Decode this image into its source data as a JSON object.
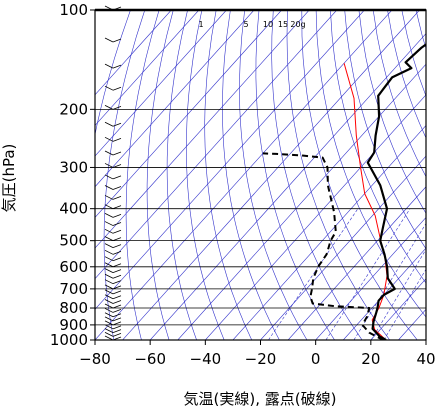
{
  "chart_data": {
    "type": "line",
    "title": "",
    "xlabel": "気温(実線), 露点(破線)",
    "ylabel": "気圧(hPa)",
    "xlim": [
      -80,
      40
    ],
    "ylim": [
      1000,
      100
    ],
    "yscale": "log",
    "xticks": [
      -80,
      -60,
      -40,
      -20,
      0,
      20,
      40
    ],
    "yticks": [
      100,
      200,
      300,
      400,
      500,
      600,
      700,
      800,
      900,
      1000
    ],
    "tick_labels_x": [
      "−80",
      "−60",
      "−40",
      "−20",
      "0",
      "20",
      "40"
    ],
    "tick_labels_y": [
      "100",
      "200",
      "300",
      "400",
      "500",
      "600",
      "700",
      "800",
      "900",
      "1000"
    ],
    "mixing_ratio_labels": [
      "1",
      "5",
      "10",
      "15",
      "20g"
    ],
    "colors": {
      "temperature": "#000000",
      "dewpoint": "#000000",
      "parcel": "#ff0000",
      "dry_adiabats": "#3333cc",
      "isotherms": "#3333cc",
      "mixing_ratio": "#3333cc",
      "grid": "#000000"
    },
    "series": [
      {
        "style": "solid",
        "points": [
          {
            "x": 25.5,
            "y": 1000
          },
          {
            "x": 22,
            "y": 975
          },
          {
            "x": 17,
            "y": 925
          },
          {
            "x": 15,
            "y": 880
          },
          {
            "x": 13,
            "y": 825
          },
          {
            "x": 12,
            "y": 800
          },
          {
            "x": 10,
            "y": 760
          },
          {
            "x": 10,
            "y": 730
          },
          {
            "x": 12,
            "y": 700
          },
          {
            "x": 6,
            "y": 650
          },
          {
            "x": 2,
            "y": 600
          },
          {
            "x": -3,
            "y": 550
          },
          {
            "x": -9,
            "y": 500
          },
          {
            "x": -12,
            "y": 460
          },
          {
            "x": -17,
            "y": 400
          },
          {
            "x": -27,
            "y": 340
          },
          {
            "x": -39,
            "y": 290
          },
          {
            "x": -40,
            "y": 270
          },
          {
            "x": -45,
            "y": 240
          },
          {
            "x": -50,
            "y": 210
          },
          {
            "x": -57,
            "y": 182
          },
          {
            "x": -58,
            "y": 160
          },
          {
            "x": -54,
            "y": 150
          },
          {
            "x": -58,
            "y": 144
          },
          {
            "x": -57,
            "y": 130
          },
          {
            "x": -56,
            "y": 125
          },
          {
            "x": -57,
            "y": 120
          },
          {
            "x": -61,
            "y": 110
          },
          {
            "x": -66,
            "y": 100
          }
        ]
      },
      {
        "style": "dashed",
        "points": [
          {
            "x": 24.5,
            "y": 1000
          },
          {
            "x": 17,
            "y": 950
          },
          {
            "x": 12,
            "y": 900
          },
          {
            "x": 11,
            "y": 850
          },
          {
            "x": 9,
            "y": 800
          },
          {
            "x": -4,
            "y": 790
          },
          {
            "x": -13,
            "y": 775
          },
          {
            "x": -16,
            "y": 740
          },
          {
            "x": -18,
            "y": 700
          },
          {
            "x": -21,
            "y": 650
          },
          {
            "x": -23,
            "y": 600
          },
          {
            "x": -24,
            "y": 550
          },
          {
            "x": -27,
            "y": 500
          },
          {
            "x": -28,
            "y": 470
          },
          {
            "x": -35,
            "y": 410
          },
          {
            "x": -46,
            "y": 340
          },
          {
            "x": -52,
            "y": 300
          },
          {
            "x": -57,
            "y": 280
          },
          {
            "x": -65,
            "y": 276
          },
          {
            "x": -75,
            "y": 273
          },
          {
            "x": -80,
            "y": 272
          }
        ]
      },
      {
        "style": "parcel",
        "points": [
          {
            "x": 25.5,
            "y": 1000
          },
          {
            "x": 18,
            "y": 930
          },
          {
            "x": 14,
            "y": 870
          },
          {
            "x": 12.5,
            "y": 800
          },
          {
            "x": 10,
            "y": 730
          },
          {
            "x": 5,
            "y": 640
          },
          {
            "x": -2,
            "y": 560
          },
          {
            "x": -10,
            "y": 490
          },
          {
            "x": -19,
            "y": 420
          },
          {
            "x": -30,
            "y": 360
          },
          {
            "x": -40,
            "y": 300
          },
          {
            "x": -52,
            "y": 240
          },
          {
            "x": -65,
            "y": 185
          },
          {
            "x": -80,
            "y": 145
          }
        ]
      }
    ],
    "wind_barbs": [
      {
        "p": 1000
      },
      {
        "p": 975
      },
      {
        "p": 950
      },
      {
        "p": 925
      },
      {
        "p": 900
      },
      {
        "p": 875
      },
      {
        "p": 850
      },
      {
        "p": 825
      },
      {
        "p": 800
      },
      {
        "p": 775
      },
      {
        "p": 750
      },
      {
        "p": 725
      },
      {
        "p": 700
      },
      {
        "p": 675
      },
      {
        "p": 650
      },
      {
        "p": 625
      },
      {
        "p": 600
      },
      {
        "p": 575
      },
      {
        "p": 550
      },
      {
        "p": 525
      },
      {
        "p": 500
      },
      {
        "p": 475
      },
      {
        "p": 450
      },
      {
        "p": 425
      },
      {
        "p": 400
      },
      {
        "p": 375
      },
      {
        "p": 350
      },
      {
        "p": 325
      },
      {
        "p": 300
      },
      {
        "p": 275
      },
      {
        "p": 250
      },
      {
        "p": 225
      },
      {
        "p": 200
      },
      {
        "p": 175
      },
      {
        "p": 150
      },
      {
        "p": 125
      },
      {
        "p": 100
      }
    ]
  }
}
